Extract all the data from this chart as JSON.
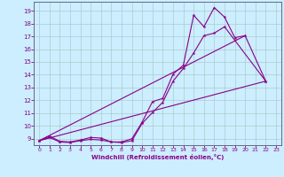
{
  "xlabel": "Windchill (Refroidissement éolien,°C)",
  "bg_color": "#cceeff",
  "line_color": "#880088",
  "grid_color": "#aacccc",
  "xlim": [
    -0.5,
    23.5
  ],
  "ylim": [
    8.5,
    19.7
  ],
  "xticks": [
    0,
    1,
    2,
    3,
    4,
    5,
    6,
    7,
    8,
    9,
    10,
    11,
    12,
    13,
    14,
    15,
    16,
    17,
    18,
    19,
    20,
    21,
    22,
    23
  ],
  "yticks": [
    9,
    10,
    11,
    12,
    13,
    14,
    15,
    16,
    17,
    18,
    19
  ],
  "series1_x": [
    0,
    1,
    2,
    3,
    4,
    5,
    6,
    7,
    8,
    9,
    10,
    11,
    12,
    13,
    14,
    15,
    16,
    17,
    18,
    19,
    20,
    22
  ],
  "series1_y": [
    8.85,
    9.2,
    8.8,
    8.75,
    8.9,
    9.1,
    9.05,
    8.75,
    8.75,
    9.0,
    10.3,
    11.9,
    12.15,
    14.05,
    14.75,
    18.65,
    17.75,
    19.25,
    18.5,
    16.9,
    17.05,
    13.5
  ],
  "series2_x": [
    0,
    1,
    2,
    3,
    4,
    5,
    6,
    7,
    8,
    9,
    10,
    11,
    12,
    13,
    14,
    15,
    16,
    17,
    18,
    22
  ],
  "series2_y": [
    8.85,
    9.1,
    8.75,
    8.7,
    8.85,
    8.95,
    8.9,
    8.75,
    8.7,
    8.85,
    10.2,
    11.05,
    11.85,
    13.5,
    14.5,
    15.7,
    17.05,
    17.25,
    17.75,
    13.5
  ],
  "line1_x": [
    0,
    22
  ],
  "line1_y": [
    8.85,
    13.5
  ],
  "line2_x": [
    0,
    20
  ],
  "line2_y": [
    8.85,
    17.05
  ]
}
